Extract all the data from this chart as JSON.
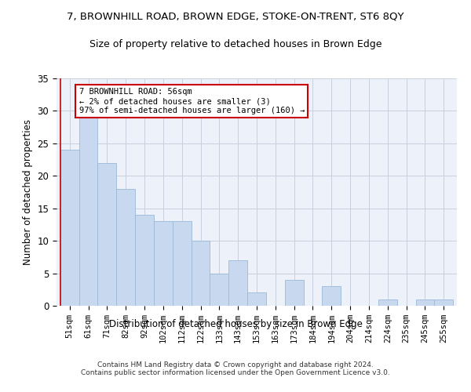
{
  "title": "7, BROWNHILL ROAD, BROWN EDGE, STOKE-ON-TRENT, ST6 8QY",
  "subtitle": "Size of property relative to detached houses in Brown Edge",
  "xlabel": "Distribution of detached houses by size in Brown Edge",
  "ylabel": "Number of detached properties",
  "categories": [
    "51sqm",
    "61sqm",
    "71sqm",
    "82sqm",
    "92sqm",
    "102sqm",
    "112sqm",
    "122sqm",
    "133sqm",
    "143sqm",
    "153sqm",
    "163sqm",
    "173sqm",
    "184sqm",
    "194sqm",
    "204sqm",
    "214sqm",
    "224sqm",
    "235sqm",
    "245sqm",
    "255sqm"
  ],
  "values": [
    24,
    29,
    22,
    18,
    14,
    13,
    13,
    10,
    5,
    7,
    2,
    0,
    4,
    0,
    3,
    0,
    0,
    1,
    0,
    1,
    1
  ],
  "bar_color": "#c8d8ee",
  "bar_edge_color": "#9ab8d8",
  "annotation_title": "7 BROWNHILL ROAD: 56sqm",
  "annotation_line1": "← 2% of detached houses are smaller (3)",
  "annotation_line2": "97% of semi-detached houses are larger (160) →",
  "annotation_box_color": "#ffffff",
  "annotation_box_edge": "#cc0000",
  "vline_color": "#cc0000",
  "ylim": [
    0,
    35
  ],
  "yticks": [
    0,
    5,
    10,
    15,
    20,
    25,
    30,
    35
  ],
  "background_color": "#edf2fa",
  "footer1": "Contains HM Land Registry data © Crown copyright and database right 2024.",
  "footer2": "Contains public sector information licensed under the Open Government Licence v3.0.",
  "title_fontsize": 9.5,
  "subtitle_fontsize": 9,
  "grid_color": "#c8d0de"
}
